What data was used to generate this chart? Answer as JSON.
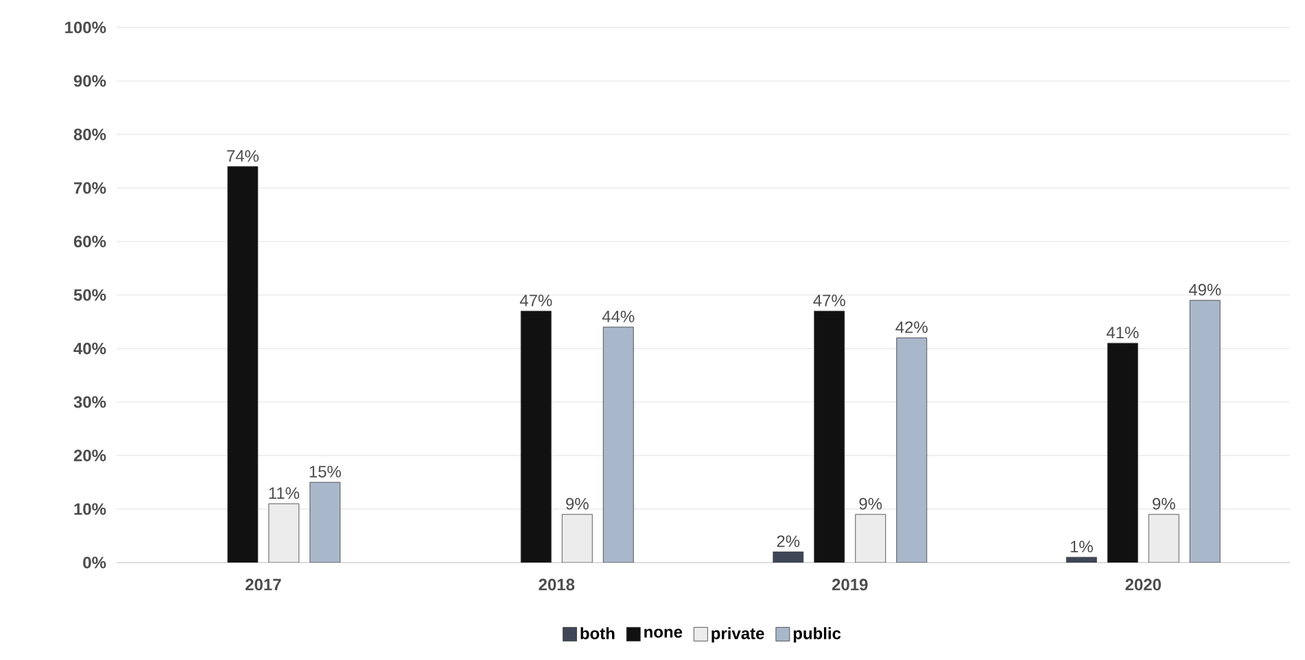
{
  "chart_data": {
    "type": "bar",
    "categories": [
      "2017",
      "2018",
      "2019",
      "2020"
    ],
    "series": [
      {
        "name": "both",
        "color": "#3f4757",
        "values": [
          null,
          null,
          2,
          1
        ],
        "value_labels": [
          null,
          null,
          "2%",
          "1%"
        ]
      },
      {
        "name": "none",
        "color": "#111111",
        "values": [
          74,
          47,
          47,
          41
        ],
        "value_labels": [
          "74%",
          "47%",
          "47%",
          "41%"
        ]
      },
      {
        "name": "private",
        "color": "#ececec",
        "values": [
          11,
          9,
          9,
          9
        ],
        "value_labels": [
          "11%",
          "9%",
          "9%",
          "9%"
        ]
      },
      {
        "name": "public",
        "color": "#a9b7ca",
        "values": [
          15,
          44,
          42,
          49
        ],
        "value_labels": [
          "15%",
          "44%",
          "42%",
          "49%"
        ]
      }
    ],
    "ylim": [
      0,
      100
    ],
    "yticks": [
      {
        "value": 0,
        "label": "0%"
      },
      {
        "value": 10,
        "label": "10%"
      },
      {
        "value": 20,
        "label": "20%"
      },
      {
        "value": 30,
        "label": "30%"
      },
      {
        "value": 40,
        "label": "40%"
      },
      {
        "value": 50,
        "label": "50%"
      },
      {
        "value": 60,
        "label": "60%"
      },
      {
        "value": 70,
        "label": "70%"
      },
      {
        "value": 80,
        "label": "80%"
      },
      {
        "value": 90,
        "label": "90%"
      },
      {
        "value": 100,
        "label": "100%"
      }
    ],
    "grid": "y",
    "legend": "bottom"
  }
}
